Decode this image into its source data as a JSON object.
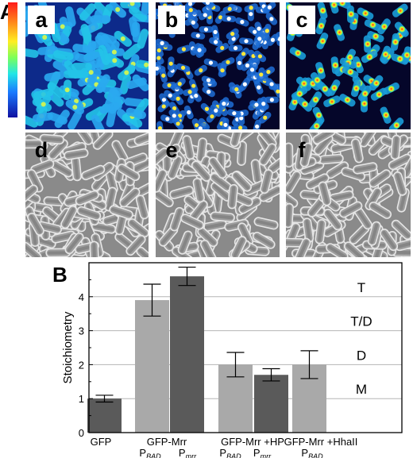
{
  "figure": {
    "panel_a_label": "A",
    "panel_b_label": "B",
    "subpanels": [
      {
        "label": "a",
        "kind": "fluorescence",
        "density": "dense"
      },
      {
        "label": "b",
        "kind": "fluorescence",
        "density": "foci"
      },
      {
        "label": "c",
        "kind": "fluorescence",
        "density": "sparse"
      },
      {
        "label": "d",
        "kind": "brightfield"
      },
      {
        "label": "e",
        "kind": "brightfield"
      },
      {
        "label": "f",
        "kind": "brightfield"
      }
    ],
    "colormap": [
      "#ff1a1a",
      "#ffee22",
      "#7cff5a",
      "#22e6e6",
      "#1a7aff",
      "#1010a0"
    ]
  },
  "chart_data": {
    "type": "bar",
    "ylabel": "Stoichiometry",
    "ylim": [
      0,
      5
    ],
    "yticks": [
      0,
      1,
      2,
      3,
      4
    ],
    "bars": [
      {
        "group": 0,
        "value": 1.0,
        "err": 0.1,
        "color": "#5a5a5a"
      },
      {
        "group": 1,
        "value": 3.9,
        "err": 0.47,
        "color": "#a9a9a9"
      },
      {
        "group": 1,
        "value": 4.6,
        "err": 0.27,
        "color": "#5a5a5a"
      },
      {
        "group": 2,
        "value": 2.0,
        "err": 0.36,
        "color": "#a9a9a9"
      },
      {
        "group": 2,
        "value": 1.7,
        "err": 0.18,
        "color": "#5a5a5a"
      },
      {
        "group": 3,
        "value": 2.0,
        "err": 0.41,
        "color": "#a9a9a9"
      }
    ],
    "reference_lines": [
      {
        "y": 1,
        "label": "M"
      },
      {
        "y": 2,
        "label": "D"
      },
      {
        "y": 3,
        "label": "T/D"
      },
      {
        "y": 4,
        "label": "T"
      }
    ],
    "x_labels": [
      {
        "line1": "GFP",
        "line2": "",
        "line2_sub": "",
        "line2b": "",
        "line2b_sub": ""
      },
      {
        "line1": "GFP-Mrr",
        "line2": "P",
        "line2_sub": "BAD",
        "line2b": "P",
        "line2b_sub": "mrr"
      },
      {
        "line1": "GFP-Mrr +HP",
        "line2": "P",
        "line2_sub": "BAD",
        "line2b": "P",
        "line2b_sub": "mrr"
      },
      {
        "line1": "GFP-Mrr +HhaII",
        "line2": "P",
        "line2_sub": "BAD",
        "line2b": "",
        "line2b_sub": ""
      }
    ]
  }
}
